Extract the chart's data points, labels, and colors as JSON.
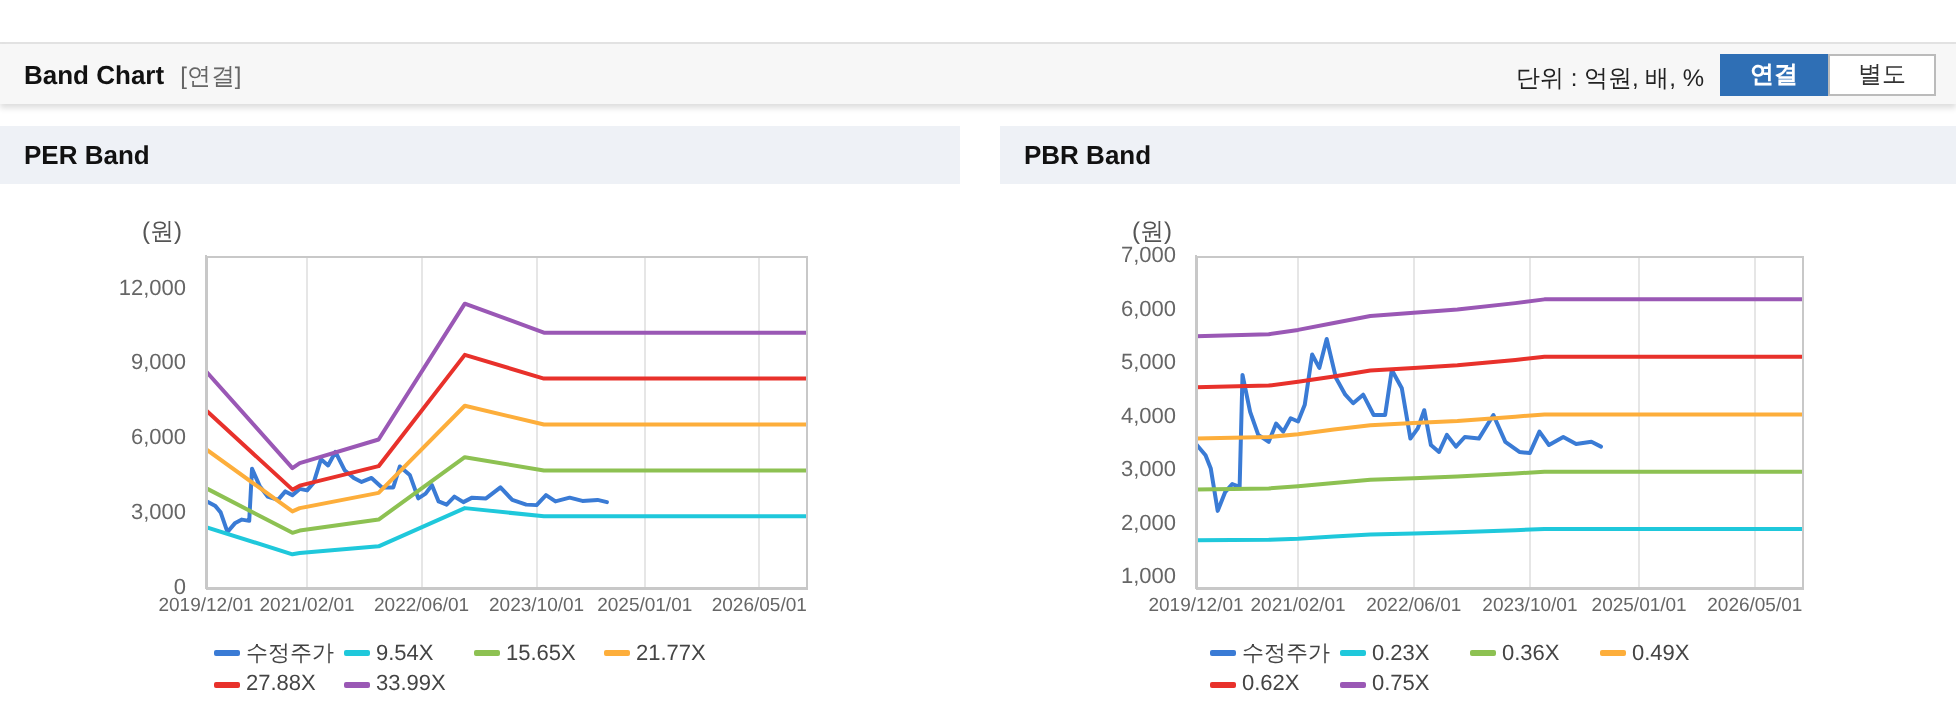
{
  "chart_data": [
    {
      "type": "other",
      "title": "Band Chart",
      "annotations": [
        "[연결]",
        "단위 : 억원, 배, %",
        "연결",
        "별도"
      ]
    },
    {
      "type": "line",
      "title": "PER Band",
      "ylabel": "(원)",
      "marker": "none",
      "line_style": "solid",
      "grid": "x",
      "legend": "bottom",
      "xlim": [
        "2019-12-01",
        "2026-11-15"
      ],
      "ylim": [
        0,
        13300
      ],
      "xticks": [
        {
          "value": "2019-12-01",
          "label": "2019/12/01"
        },
        {
          "value": "2021-02-01",
          "label": "2021/02/01"
        },
        {
          "value": "2022-06-01",
          "label": "2022/06/01"
        },
        {
          "value": "2023-10-01",
          "label": "2023/10/01"
        },
        {
          "value": "2025-01-01",
          "label": "2025/01/01"
        },
        {
          "value": "2026-05-01",
          "label": "2026/05/01"
        }
      ],
      "yticks": [
        0,
        {
          "value": 3000,
          "label": "3,000"
        },
        {
          "value": 6000,
          "label": "6,000"
        },
        {
          "value": 9000,
          "label": "9,000"
        },
        {
          "value": 12000,
          "label": "12,000"
        }
      ],
      "series": [
        {
          "name": "수정주가",
          "color": "#3a7bd5",
          "x": [
            "2019-12-01",
            "2020-01-10",
            "2020-02-01",
            "2020-03-01",
            "2020-04-01",
            "2020-05-01",
            "2020-06-01",
            "2020-06-13",
            "2020-07-15",
            "2020-08-18",
            "2020-10-01",
            "2020-11-01",
            "2020-12-01",
            "2021-01-01",
            "2021-02-01",
            "2021-03-01",
            "2021-04-01",
            "2021-05-01",
            "2021-06-01",
            "2021-07-10",
            "2021-08-18",
            "2021-09-20",
            "2021-11-01",
            "2021-12-15",
            "2022-02-01",
            "2022-03-01",
            "2022-04-12",
            "2022-05-18",
            "2022-06-18",
            "2022-07-15",
            "2022-08-12",
            "2022-09-15",
            "2022-10-18",
            "2022-11-25",
            "2023-01-01",
            "2023-03-01",
            "2023-05-01",
            "2023-06-20",
            "2023-08-18",
            "2023-10-01",
            "2023-11-10",
            "2023-12-20",
            "2024-02-18",
            "2024-04-12",
            "2024-06-15",
            "2024-07-25"
          ],
          "values": [
            3490,
            3280,
            3030,
            2240,
            2590,
            2740,
            2690,
            4780,
            4090,
            3660,
            3530,
            3870,
            3720,
            3970,
            3910,
            4220,
            5160,
            4910,
            5450,
            4720,
            4410,
            4250,
            4410,
            4030,
            4030,
            4870,
            4530,
            3590,
            3780,
            4120,
            3470,
            3340,
            3660,
            3440,
            3620,
            3590,
            4030,
            3530,
            3340,
            3320,
            3720,
            3470,
            3620,
            3490,
            3530,
            3440
          ]
        },
        {
          "name": "9.54X",
          "color": "#1fc8db",
          "x": [
            "2019-12-01",
            "2020-12-01",
            "2021-01-01",
            "2021-12-01",
            "2022-12-01",
            "2023-11-01",
            "2026-11-15"
          ],
          "values": [
            2440,
            1350,
            1400,
            1670,
            3200,
            2870,
            2870
          ]
        },
        {
          "name": "15.65X",
          "color": "#8dc152",
          "x": [
            "2019-12-01",
            "2020-12-01",
            "2021-01-01",
            "2021-12-01",
            "2022-12-01",
            "2023-11-01",
            "2026-11-15"
          ],
          "values": [
            4000,
            2210,
            2300,
            2740,
            5240,
            4710,
            4710
          ]
        },
        {
          "name": "21.77X",
          "color": "#fdae3b",
          "x": [
            "2019-12-01",
            "2020-12-01",
            "2021-01-01",
            "2021-12-01",
            "2022-12-01",
            "2023-11-01",
            "2026-11-15"
          ],
          "values": [
            5560,
            3070,
            3200,
            3810,
            7300,
            6550,
            6550
          ]
        },
        {
          "name": "27.88X",
          "color": "#e8312b",
          "x": [
            "2019-12-01",
            "2020-12-01",
            "2021-01-01",
            "2021-12-01",
            "2022-12-01",
            "2023-11-01",
            "2026-11-15"
          ],
          "values": [
            7120,
            3940,
            4100,
            4880,
            9340,
            8390,
            8390
          ]
        },
        {
          "name": "33.99X",
          "color": "#9a58b5",
          "x": [
            "2019-12-01",
            "2020-12-01",
            "2021-01-01",
            "2021-12-01",
            "2022-12-01",
            "2023-11-01",
            "2026-11-15"
          ],
          "values": [
            8680,
            4800,
            5000,
            5950,
            11390,
            10230,
            10230
          ]
        }
      ]
    },
    {
      "type": "line",
      "title": "PBR Band",
      "ylabel": "(원)",
      "marker": "none",
      "line_style": "solid",
      "grid": "x",
      "legend": "bottom",
      "xlim": [
        "2019-12-01",
        "2026-11-15"
      ],
      "ylim": [
        800,
        7000
      ],
      "xticks": [
        {
          "value": "2019-12-01",
          "label": "2019/12/01"
        },
        {
          "value": "2021-02-01",
          "label": "2021/02/01"
        },
        {
          "value": "2022-06-01",
          "label": "2022/06/01"
        },
        {
          "value": "2023-10-01",
          "label": "2023/10/01"
        },
        {
          "value": "2025-01-01",
          "label": "2025/01/01"
        },
        {
          "value": "2026-05-01",
          "label": "2026/05/01"
        }
      ],
      "yticks": [
        {
          "value": 1000,
          "label": "1,000"
        },
        {
          "value": 2000,
          "label": "2,000"
        },
        {
          "value": 3000,
          "label": "3,000"
        },
        {
          "value": 4000,
          "label": "4,000"
        },
        {
          "value": 5000,
          "label": "5,000"
        },
        {
          "value": 6000,
          "label": "6,000"
        },
        {
          "value": 7000,
          "label": "7,000"
        }
      ],
      "series": [
        {
          "name": "수정주가",
          "color": "#3a7bd5",
          "x": [
            "2019-12-01",
            "2020-01-10",
            "2020-02-01",
            "2020-03-01",
            "2020-04-01",
            "2020-05-01",
            "2020-06-01",
            "2020-06-13",
            "2020-07-15",
            "2020-08-18",
            "2020-10-01",
            "2020-11-01",
            "2020-12-01",
            "2021-01-01",
            "2021-02-01",
            "2021-03-01",
            "2021-04-01",
            "2021-05-01",
            "2021-06-01",
            "2021-07-10",
            "2021-08-18",
            "2021-09-20",
            "2021-11-01",
            "2021-12-15",
            "2022-02-01",
            "2022-03-01",
            "2022-04-12",
            "2022-05-18",
            "2022-06-18",
            "2022-07-15",
            "2022-08-12",
            "2022-09-15",
            "2022-10-18",
            "2022-11-25",
            "2023-01-01",
            "2023-03-01",
            "2023-05-01",
            "2023-06-20",
            "2023-08-18",
            "2023-10-01",
            "2023-11-10",
            "2023-12-20",
            "2024-02-18",
            "2024-04-12",
            "2024-06-15",
            "2024-07-25"
          ],
          "values": [
            3490,
            3280,
            3030,
            2240,
            2590,
            2740,
            2690,
            4780,
            4090,
            3660,
            3530,
            3870,
            3720,
            3970,
            3910,
            4220,
            5160,
            4910,
            5450,
            4720,
            4410,
            4250,
            4410,
            4030,
            4030,
            4870,
            4530,
            3590,
            3780,
            4120,
            3470,
            3340,
            3660,
            3440,
            3620,
            3590,
            4030,
            3530,
            3340,
            3320,
            3720,
            3470,
            3620,
            3490,
            3530,
            3440
          ]
        },
        {
          "name": "0.23X",
          "color": "#1fc8db",
          "x": [
            "2019-12-01",
            "2020-10-01",
            "2021-02-01",
            "2021-07-01",
            "2021-12-01",
            "2022-06-01",
            "2022-12-01",
            "2023-08-01",
            "2023-12-01",
            "2026-11-15"
          ],
          "values": [
            1690,
            1700,
            1720,
            1760,
            1800,
            1820,
            1840,
            1880,
            1900,
            1900
          ]
        },
        {
          "name": "0.36X",
          "color": "#8dc152",
          "x": [
            "2019-12-01",
            "2020-10-01",
            "2021-02-01",
            "2021-07-01",
            "2021-12-01",
            "2022-06-01",
            "2022-12-01",
            "2023-08-01",
            "2023-12-01",
            "2026-11-15"
          ],
          "values": [
            2640,
            2660,
            2700,
            2760,
            2820,
            2850,
            2880,
            2940,
            2970,
            2970
          ]
        },
        {
          "name": "0.49X",
          "color": "#fdae3b",
          "x": [
            "2019-12-01",
            "2020-10-01",
            "2021-02-01",
            "2021-07-01",
            "2021-12-01",
            "2022-06-01",
            "2022-12-01",
            "2023-08-01",
            "2023-12-01",
            "2026-11-15"
          ],
          "values": [
            3590,
            3620,
            3670,
            3760,
            3840,
            3880,
            3920,
            4000,
            4040,
            4040
          ]
        },
        {
          "name": "0.62X",
          "color": "#e8312b",
          "x": [
            "2019-12-01",
            "2020-10-01",
            "2021-02-01",
            "2021-07-01",
            "2021-12-01",
            "2022-06-01",
            "2022-12-01",
            "2023-08-01",
            "2023-12-01",
            "2026-11-15"
          ],
          "values": [
            4550,
            4580,
            4650,
            4750,
            4860,
            4910,
            4960,
            5060,
            5120,
            5120
          ]
        },
        {
          "name": "0.75X",
          "color": "#9a58b5",
          "x": [
            "2019-12-01",
            "2020-10-01",
            "2021-02-01",
            "2021-07-01",
            "2021-12-01",
            "2022-06-01",
            "2022-12-01",
            "2023-08-01",
            "2023-12-01",
            "2026-11-15"
          ],
          "values": [
            5500,
            5540,
            5620,
            5750,
            5880,
            5940,
            6000,
            6120,
            6190,
            6190
          ]
        }
      ]
    }
  ]
}
